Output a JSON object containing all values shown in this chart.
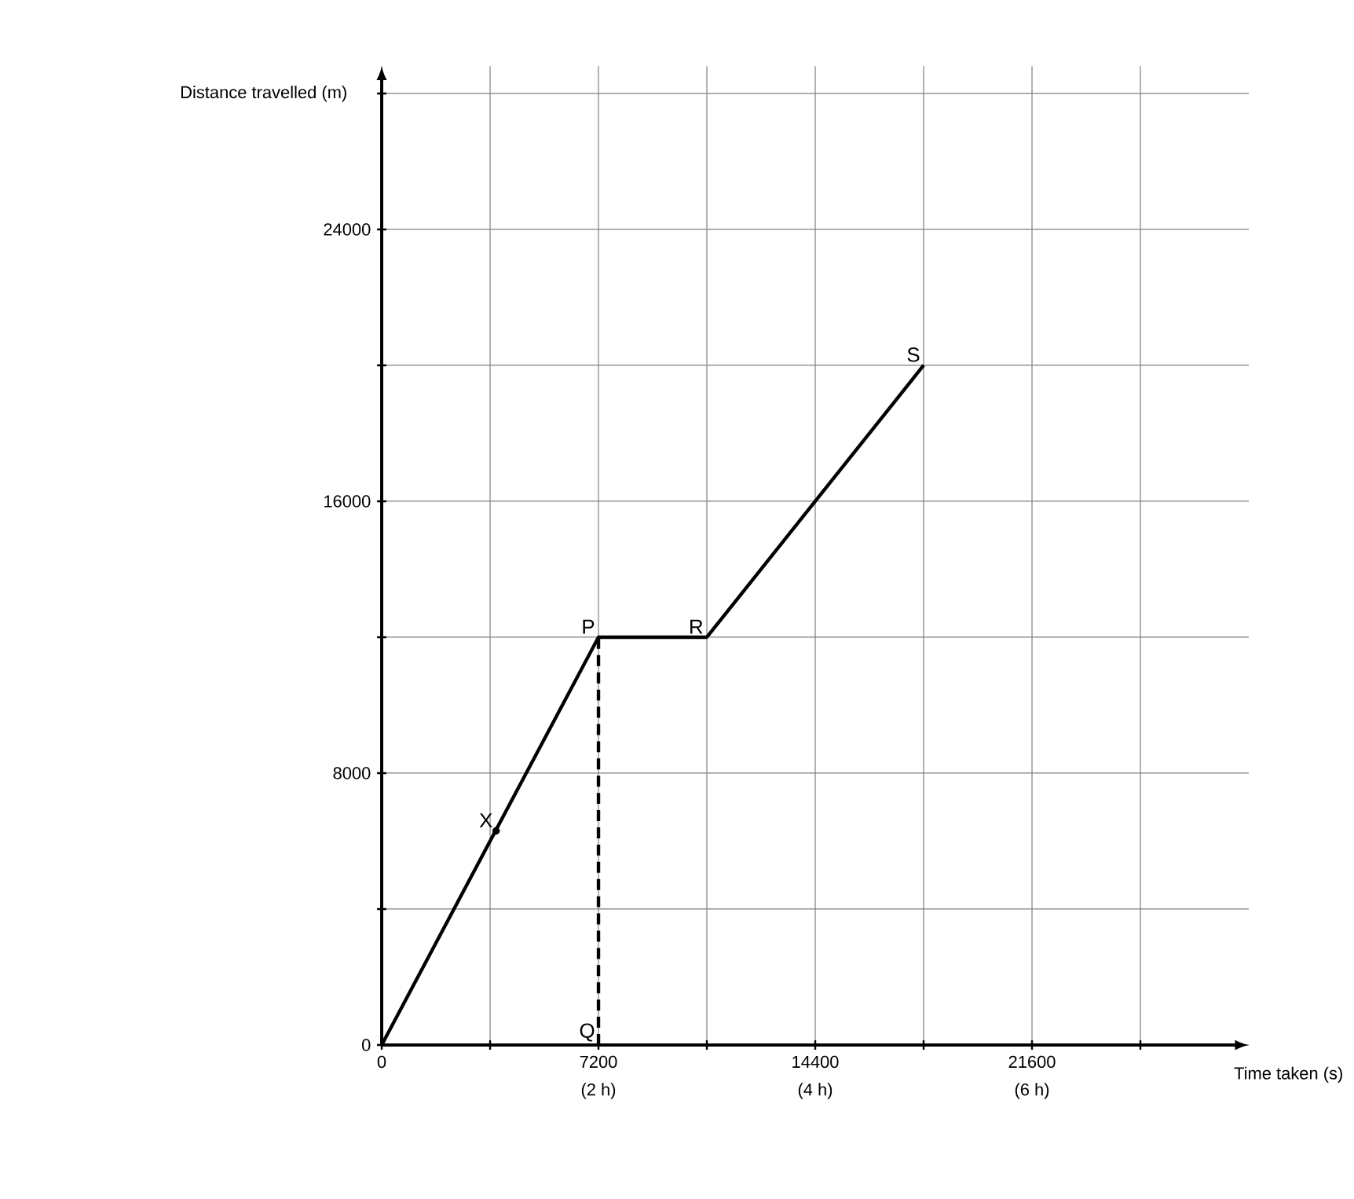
{
  "chart_data": {
    "type": "line",
    "xlabel": "Time taken (s)",
    "ylabel": "Distance travelled (m)",
    "series": [
      {
        "color": "#000000",
        "x": [
          0,
          7200,
          10800,
          18000
        ],
        "values": [
          0,
          12000,
          12000,
          20000
        ],
        "line_style": "solid"
      },
      {
        "type": "line",
        "color": "#000000",
        "x": [
          7200,
          7200
        ],
        "values": [
          0,
          12000
        ],
        "line_style": "dashed"
      },
      {
        "type": "scatter",
        "color": "#000000",
        "x": [
          3800
        ],
        "values": [
          6300
        ],
        "marker": "circle"
      }
    ],
    "xlim": [
      0,
      28800
    ],
    "ylim": [
      0,
      28800
    ],
    "xticks": [
      0,
      {
        "value": 3600,
        "label": null
      },
      7200,
      {
        "value": 10800,
        "label": null
      },
      14400,
      {
        "value": 18000,
        "label": null
      },
      21600,
      {
        "value": 25200,
        "label": null
      }
    ],
    "yticks": [
      0,
      {
        "value": 4000,
        "label": null
      },
      8000,
      {
        "value": 12000,
        "label": null
      },
      16000,
      {
        "value": 20000,
        "label": null
      },
      24000,
      {
        "value": 28000,
        "label": null
      }
    ],
    "grid": true,
    "annotations": [
      {
        "text": "P",
        "x": 7200,
        "y": 12000
      },
      {
        "text": "R",
        "x": 10800,
        "y": 12000
      },
      {
        "text": "S",
        "x": 18000,
        "y": 20000
      },
      {
        "text": "X",
        "x": 3800,
        "y": 6300
      },
      {
        "text": "Q",
        "x": 7200,
        "y": 0
      },
      "(2 h)",
      "(4 h)",
      "(6 h)"
    ]
  }
}
